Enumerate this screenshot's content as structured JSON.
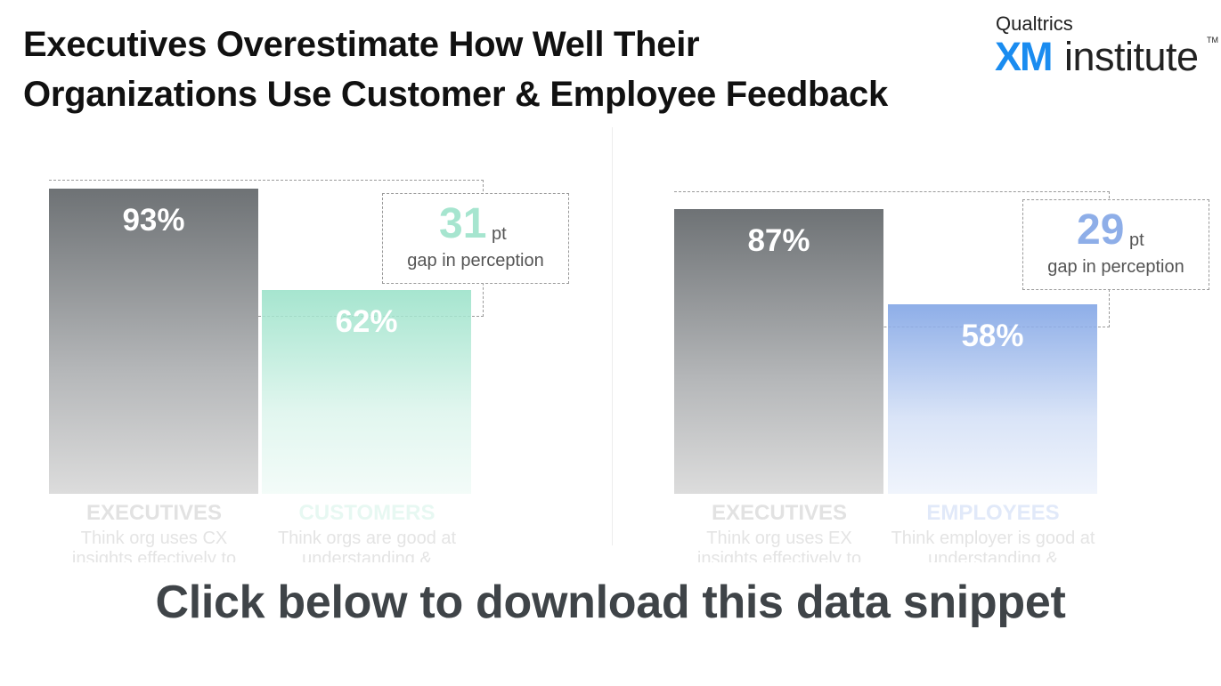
{
  "header": {
    "title_line1": "Executives Overestimate How Well Their",
    "title_line2": "Organizations Use Customer & Employee Feedback",
    "logo_brand": "Qualtrics",
    "logo_xm": "XM",
    "logo_institute": "institute",
    "logo_tm": "TM"
  },
  "chart_data": [
    {
      "type": "bar",
      "categories": [
        "EXECUTIVES",
        "CUSTOMERS"
      ],
      "values": [
        93,
        62
      ],
      "value_labels": [
        "93%",
        "62%"
      ],
      "descriptions": [
        "Think org uses CX insights effectively to",
        "Think orgs are good at understanding &"
      ],
      "ylim": [
        0,
        100
      ],
      "colors": [
        "#6e7275",
        "#a6e5cf"
      ],
      "gap": {
        "value": "31",
        "unit": "pt",
        "label": "gap in perception",
        "color": "#a6e5cf"
      }
    },
    {
      "type": "bar",
      "categories": [
        "EXECUTIVES",
        "EMPLOYEES"
      ],
      "values": [
        87,
        58
      ],
      "value_labels": [
        "87%",
        "58%"
      ],
      "descriptions": [
        "Think org uses EX insights effectively to",
        "Think employer is good at understanding &"
      ],
      "ylim": [
        0,
        100
      ],
      "colors": [
        "#6e7275",
        "#8eaee8"
      ],
      "gap": {
        "value": "29",
        "unit": "pt",
        "label": "gap in perception",
        "color": "#8eaee8"
      }
    }
  ],
  "cta": {
    "text": "Click below to download this data snippet"
  }
}
